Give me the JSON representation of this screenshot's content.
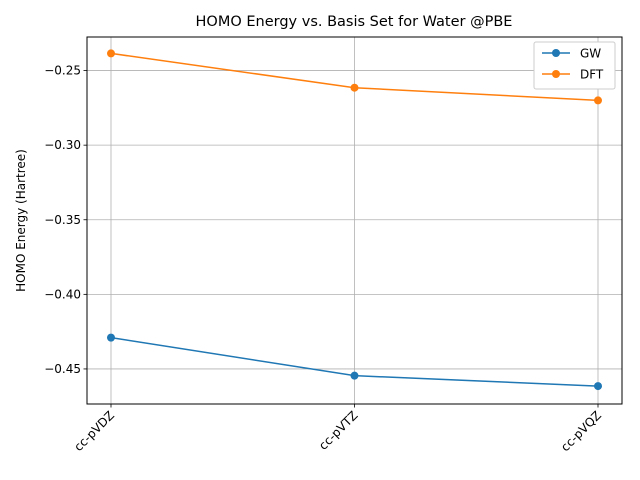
{
  "chart_data": {
    "type": "line",
    "title": "HOMO Energy vs. Basis Set for Water @PBE",
    "xlabel": "",
    "ylabel": "HOMO Energy (Hartree)",
    "categories": [
      "cc-pVDZ",
      "cc-pVTZ",
      "cc-pVQZ"
    ],
    "ylim": [
      -0.4735,
      -0.2275
    ],
    "yticks": [
      -0.25,
      -0.3,
      -0.35,
      -0.4,
      -0.45
    ],
    "ytick_labels": [
      "−0.25",
      "−0.30",
      "−0.35",
      "−0.40",
      "−0.45"
    ],
    "grid": true,
    "legend_position": "top-right",
    "series": [
      {
        "name": "GW",
        "color": "#1f77b4",
        "values": [
          -0.429,
          -0.4545,
          -0.4615
        ]
      },
      {
        "name": "DFT",
        "color": "#ff7f0e",
        "values": [
          -0.2385,
          -0.2615,
          -0.27
        ]
      }
    ]
  }
}
